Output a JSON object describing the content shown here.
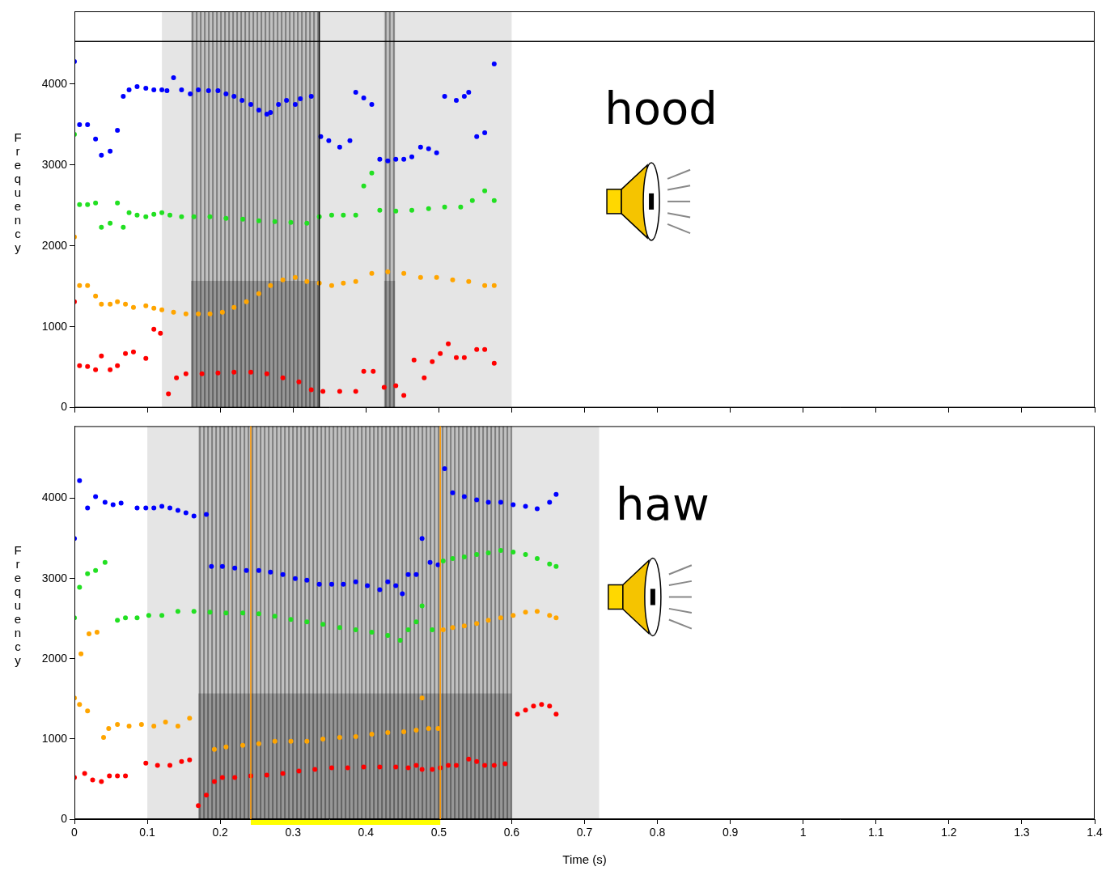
{
  "chart_data": [
    {
      "type": "scatter",
      "annotation": {
        "text": "hood",
        "x": 0.805,
        "y": 3650
      },
      "y_label": "Frequency",
      "xlim": [
        0,
        1.4
      ],
      "xticks": [
        0,
        0.1,
        0.2,
        0.3,
        0.4,
        0.5,
        0.6,
        0.7,
        0.8,
        0.9,
        1,
        1.1,
        1.2,
        1.3,
        1.4
      ],
      "ylim": [
        0,
        4900
      ],
      "yticks": [
        0,
        1000,
        2000,
        3000,
        4000
      ],
      "grid": false,
      "tick_labels": "y",
      "marker": "circle",
      "cursor": {
        "x": 0.336,
        "y": 4527
      },
      "spectrogram_dark": [
        [
          0.16,
          0.335
        ],
        [
          0.425,
          0.44
        ]
      ],
      "spectrogram_faint": [
        [
          0.12,
          0.6
        ]
      ],
      "series": [
        {
          "color": "#ff0000",
          "x": [
            0,
            0.007,
            0.018,
            0.029,
            0.037,
            0.049,
            0.059,
            0.07,
            0.081,
            0.098,
            0.109,
            0.118,
            0.129,
            0.14,
            0.153,
            0.175,
            0.197,
            0.219,
            0.242,
            0.264,
            0.286,
            0.308,
            0.325,
            0.341,
            0.364,
            0.386,
            0.397,
            0.41,
            0.425,
            0.441,
            0.452,
            0.466,
            0.48,
            0.491,
            0.502,
            0.513,
            0.524,
            0.535,
            0.552,
            0.563,
            0.576
          ],
          "values": [
            1310,
            520,
            510,
            470,
            640,
            470,
            520,
            670,
            690,
            610,
            970,
            920,
            170,
            370,
            420,
            420,
            430,
            440,
            440,
            420,
            370,
            320,
            220,
            200,
            200,
            200,
            450,
            450,
            250,
            270,
            150,
            590,
            370,
            570,
            670,
            790,
            620,
            620,
            720,
            720,
            550
          ]
        },
        {
          "color": "#ffa500",
          "x": [
            0,
            0.007,
            0.018,
            0.029,
            0.037,
            0.049,
            0.059,
            0.07,
            0.081,
            0.098,
            0.109,
            0.12,
            0.136,
            0.153,
            0.17,
            0.186,
            0.203,
            0.219,
            0.236,
            0.253,
            0.269,
            0.286,
            0.303,
            0.319,
            0.336,
            0.353,
            0.369,
            0.386,
            0.408,
            0.43,
            0.452,
            0.475,
            0.497,
            0.519,
            0.541,
            0.563,
            0.576
          ],
          "values": [
            2110,
            1510,
            1510,
            1380,
            1280,
            1280,
            1310,
            1280,
            1240,
            1260,
            1230,
            1210,
            1180,
            1160,
            1160,
            1160,
            1180,
            1240,
            1310,
            1410,
            1510,
            1580,
            1610,
            1560,
            1540,
            1510,
            1540,
            1560,
            1660,
            1680,
            1660,
            1610,
            1610,
            1580,
            1560,
            1510,
            1510
          ]
        },
        {
          "color": "#22e022",
          "x": [
            0,
            0.007,
            0.018,
            0.029,
            0.037,
            0.049,
            0.059,
            0.067,
            0.075,
            0.086,
            0.098,
            0.109,
            0.12,
            0.131,
            0.147,
            0.164,
            0.186,
            0.208,
            0.231,
            0.253,
            0.275,
            0.297,
            0.319,
            0.336,
            0.353,
            0.369,
            0.386,
            0.397,
            0.408,
            0.419,
            0.441,
            0.463,
            0.486,
            0.508,
            0.53,
            0.546,
            0.563,
            0.576
          ],
          "values": [
            3380,
            2510,
            2510,
            2530,
            2230,
            2280,
            2530,
            2230,
            2410,
            2380,
            2360,
            2390,
            2410,
            2380,
            2360,
            2360,
            2360,
            2340,
            2330,
            2310,
            2300,
            2290,
            2280,
            2360,
            2380,
            2380,
            2380,
            2740,
            2900,
            2440,
            2430,
            2440,
            2460,
            2480,
            2480,
            2560,
            2680,
            2560
          ]
        },
        {
          "color": "#0000ff",
          "x": [
            0,
            0.007,
            0.018,
            0.029,
            0.037,
            0.049,
            0.059,
            0.067,
            0.075,
            0.086,
            0.098,
            0.109,
            0.12,
            0.127,
            0.136,
            0.147,
            0.159,
            0.17,
            0.184,
            0.197,
            0.208,
            0.219,
            0.23,
            0.242,
            0.253,
            0.264,
            0.269,
            0.28,
            0.291,
            0.303,
            0.31,
            0.325,
            0.338,
            0.349,
            0.364,
            0.378,
            0.386,
            0.397,
            0.408,
            0.419,
            0.43,
            0.441,
            0.452,
            0.463,
            0.475,
            0.486,
            0.497,
            0.508,
            0.524,
            0.535,
            0.541,
            0.552,
            0.563,
            0.576
          ],
          "values": [
            4280,
            3500,
            3500,
            3320,
            3120,
            3170,
            3430,
            3850,
            3930,
            3970,
            3950,
            3930,
            3930,
            3920,
            4080,
            3930,
            3880,
            3930,
            3920,
            3920,
            3880,
            3850,
            3800,
            3750,
            3680,
            3630,
            3650,
            3750,
            3800,
            3750,
            3820,
            3850,
            3350,
            3300,
            3220,
            3300,
            3900,
            3830,
            3750,
            3070,
            3050,
            3070,
            3070,
            3100,
            3220,
            3200,
            3150,
            3850,
            3800,
            3850,
            3900,
            3350,
            3400,
            4250
          ]
        }
      ]
    },
    {
      "type": "scatter",
      "annotation": {
        "text": "haw",
        "x": 0.807,
        "y": 3880
      },
      "x_label": "Time (s)",
      "y_label": "Frequency",
      "xlim": [
        0,
        1.4
      ],
      "xticks": [
        0,
        0.1,
        0.2,
        0.3,
        0.4,
        0.5,
        0.6,
        0.7,
        0.8,
        0.9,
        1,
        1.1,
        1.2,
        1.3,
        1.4
      ],
      "ylim": [
        0,
        4900
      ],
      "yticks": [
        0,
        1000,
        2000,
        3000,
        4000
      ],
      "grid": false,
      "tick_labels": true,
      "marker": "circle",
      "selection": [
        0.242,
        0.502
      ],
      "spectrogram_dark": [
        [
          0.17,
          0.6
        ]
      ],
      "spectrogram_faint": [
        [
          0.1,
          0.72
        ]
      ],
      "series": [
        {
          "color": "#ff0000",
          "x": [
            0,
            0.014,
            0.025,
            0.037,
            0.048,
            0.059,
            0.07,
            0.098,
            0.114,
            0.131,
            0.147,
            0.158,
            0.17,
            0.181,
            0.192,
            0.203,
            0.22,
            0.242,
            0.264,
            0.286,
            0.308,
            0.33,
            0.353,
            0.375,
            0.397,
            0.419,
            0.441,
            0.458,
            0.469,
            0.477,
            0.491,
            0.502,
            0.513,
            0.524,
            0.541,
            0.552,
            0.563,
            0.576,
            0.591,
            0.608,
            0.619,
            0.63,
            0.641,
            0.652,
            0.661
          ],
          "values": [
            520,
            570,
            490,
            470,
            540,
            540,
            540,
            700,
            670,
            670,
            720,
            740,
            170,
            300,
            470,
            520,
            520,
            540,
            550,
            570,
            600,
            620,
            640,
            640,
            650,
            650,
            650,
            640,
            670,
            620,
            620,
            640,
            670,
            670,
            750,
            720,
            670,
            670,
            690,
            1310,
            1360,
            1410,
            1430,
            1410,
            1310
          ]
        },
        {
          "color": "#ffa500",
          "x": [
            0,
            0.007,
            0.009,
            0.018,
            0.02,
            0.031,
            0.04,
            0.047,
            0.059,
            0.075,
            0.092,
            0.109,
            0.125,
            0.142,
            0.158,
            0.192,
            0.208,
            0.231,
            0.253,
            0.275,
            0.297,
            0.319,
            0.341,
            0.364,
            0.386,
            0.408,
            0.43,
            0.452,
            0.469,
            0.477,
            0.486,
            0.499,
            0.506,
            0.519,
            0.535,
            0.552,
            0.568,
            0.585,
            0.602,
            0.619,
            0.635,
            0.652,
            0.661
          ],
          "values": [
            1510,
            1430,
            2060,
            1350,
            2310,
            2330,
            1020,
            1130,
            1180,
            1160,
            1180,
            1160,
            1210,
            1160,
            1260,
            870,
            900,
            920,
            940,
            970,
            970,
            970,
            1000,
            1020,
            1030,
            1060,
            1080,
            1090,
            1110,
            1510,
            1130,
            1130,
            2360,
            2390,
            2410,
            2440,
            2480,
            2510,
            2540,
            2580,
            2590,
            2540,
            2510
          ]
        },
        {
          "color": "#22e022",
          "x": [
            0,
            0.007,
            0.018,
            0.029,
            0.042,
            0.059,
            0.07,
            0.086,
            0.102,
            0.12,
            0.142,
            0.164,
            0.186,
            0.208,
            0.231,
            0.253,
            0.275,
            0.297,
            0.319,
            0.341,
            0.364,
            0.386,
            0.408,
            0.43,
            0.447,
            0.458,
            0.469,
            0.477,
            0.491,
            0.506,
            0.519,
            0.535,
            0.552,
            0.568,
            0.585,
            0.602,
            0.619,
            0.635,
            0.652,
            0.661
          ],
          "values": [
            2510,
            2890,
            3060,
            3100,
            3200,
            2480,
            2510,
            2510,
            2540,
            2540,
            2590,
            2590,
            2580,
            2570,
            2570,
            2560,
            2530,
            2490,
            2460,
            2430,
            2390,
            2360,
            2330,
            2290,
            2230,
            2360,
            2460,
            2660,
            2360,
            3220,
            3250,
            3270,
            3300,
            3320,
            3350,
            3330,
            3300,
            3250,
            3180,
            3150
          ]
        },
        {
          "color": "#0000ff",
          "x": [
            0,
            0.007,
            0.018,
            0.029,
            0.042,
            0.053,
            0.064,
            0.086,
            0.098,
            0.109,
            0.12,
            0.131,
            0.142,
            0.153,
            0.164,
            0.181,
            0.188,
            0.203,
            0.22,
            0.236,
            0.253,
            0.269,
            0.286,
            0.303,
            0.319,
            0.336,
            0.353,
            0.369,
            0.386,
            0.402,
            0.419,
            0.43,
            0.441,
            0.45,
            0.458,
            0.469,
            0.477,
            0.488,
            0.499,
            0.508,
            0.519,
            0.535,
            0.552,
            0.568,
            0.585,
            0.602,
            0.619,
            0.635,
            0.652,
            0.661
          ],
          "values": [
            3500,
            4220,
            3880,
            4020,
            3950,
            3920,
            3940,
            3880,
            3880,
            3880,
            3900,
            3880,
            3850,
            3820,
            3780,
            3800,
            3150,
            3150,
            3130,
            3100,
            3100,
            3080,
            3050,
            3000,
            2980,
            2930,
            2930,
            2930,
            2960,
            2910,
            2860,
            2960,
            2910,
            2810,
            3050,
            3050,
            3500,
            3200,
            3170,
            4370,
            4070,
            4020,
            3980,
            3950,
            3950,
            3920,
            3900,
            3870,
            3950,
            4050
          ]
        }
      ]
    }
  ]
}
